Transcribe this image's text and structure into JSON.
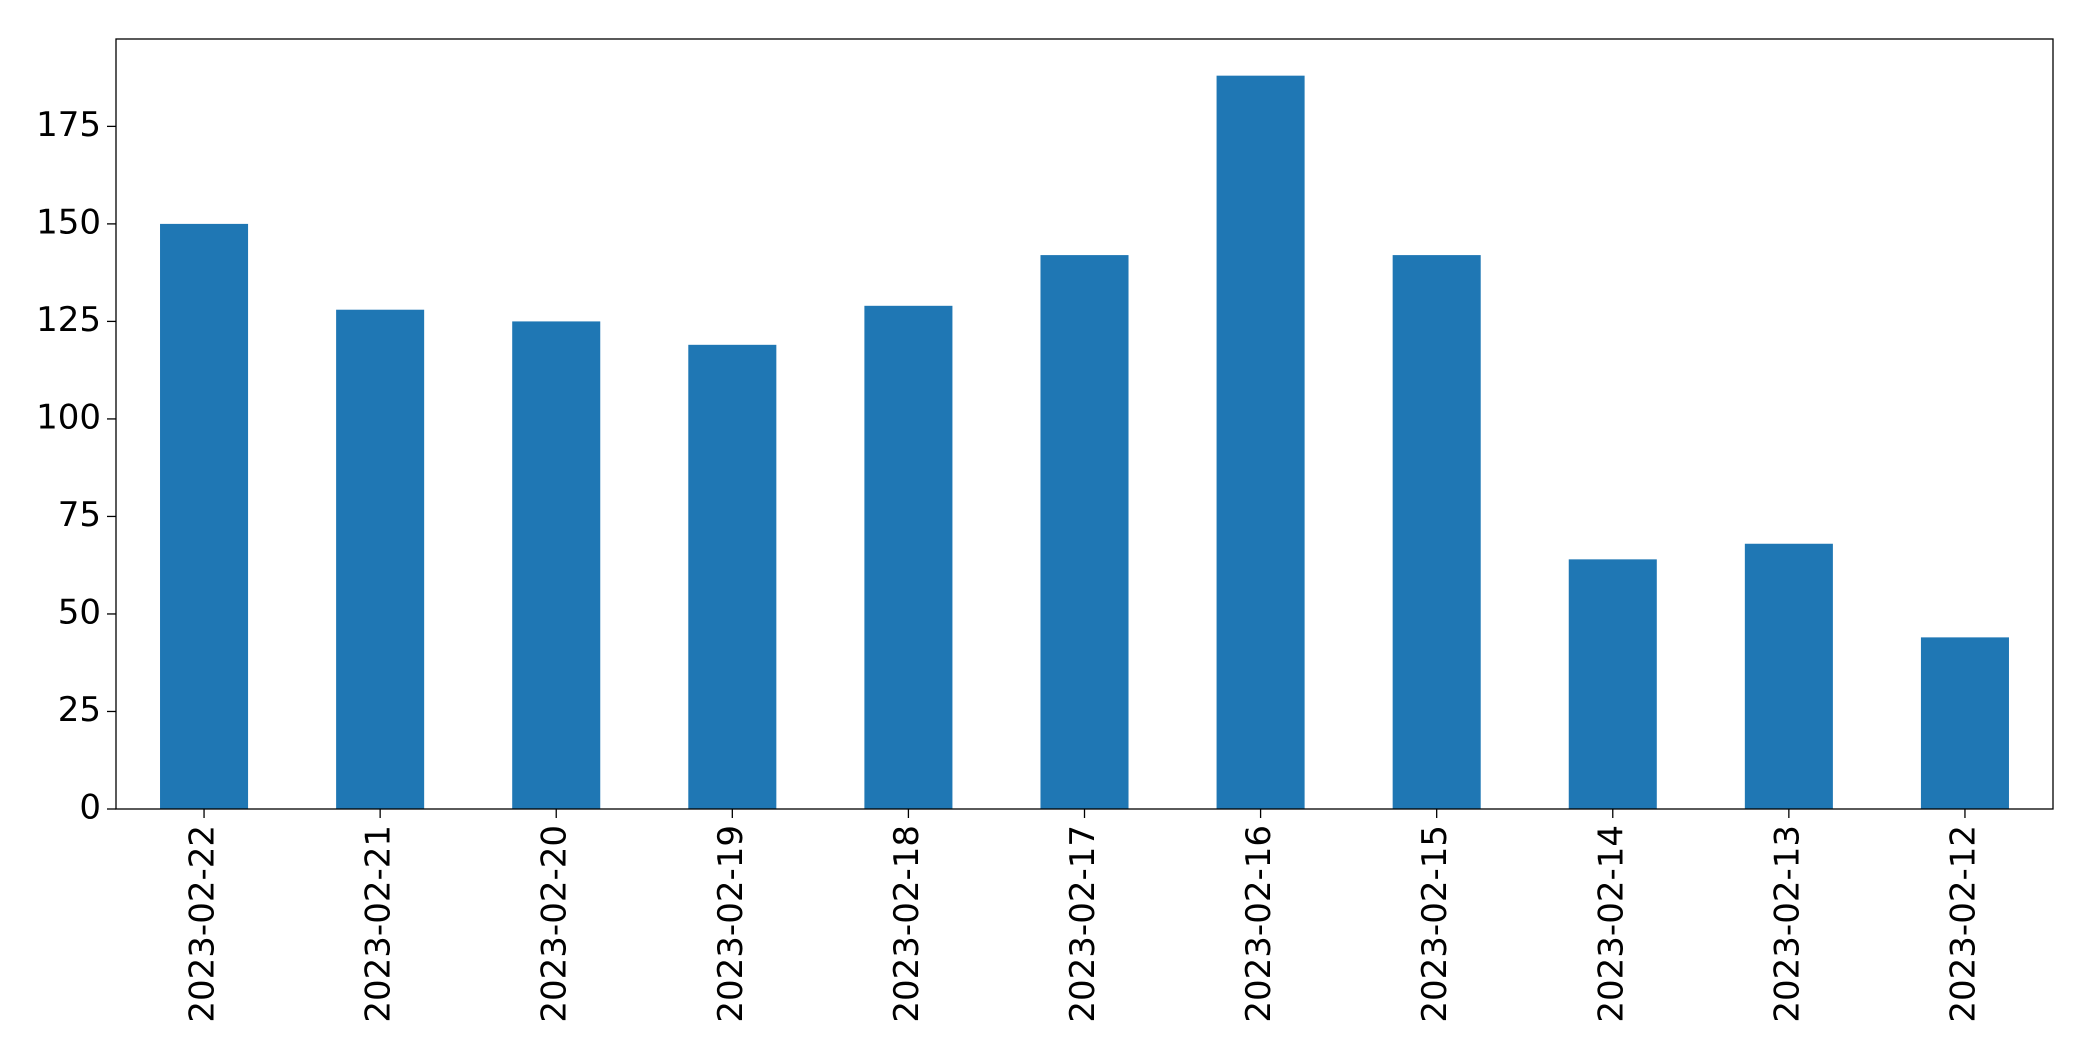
{
  "chart_data": {
    "type": "bar",
    "categories": [
      "2023-02-22",
      "2023-02-21",
      "2023-02-20",
      "2023-02-19",
      "2023-02-18",
      "2023-02-17",
      "2023-02-16",
      "2023-02-15",
      "2023-02-14",
      "2023-02-13",
      "2023-02-12"
    ],
    "values": [
      150,
      128,
      125,
      119,
      129,
      142,
      188,
      142,
      64,
      68,
      44
    ],
    "color": "#1f77b4",
    "ylim": [
      0,
      197.4
    ],
    "yticks": [
      0,
      25,
      50,
      75,
      100,
      125,
      150,
      175
    ],
    "grid": false
  }
}
